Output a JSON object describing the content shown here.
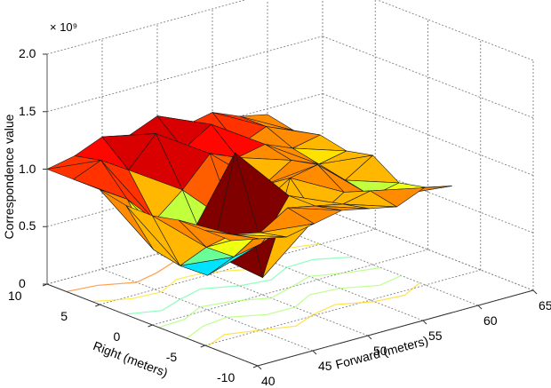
{
  "chart_data": {
    "type": "surface3d",
    "title": "",
    "xlabel": "Forward (meters)",
    "ylabel": "Right (meters)",
    "zlabel": "Correspondence value",
    "z_exponent_label": "× 10⁹",
    "xlim": [
      40,
      65
    ],
    "ylim": [
      -10,
      10
    ],
    "zlim": [
      0,
      2.0
    ],
    "x_ticks": [
      "40",
      "45",
      "50",
      "55",
      "60",
      "65"
    ],
    "y_ticks": [
      "10",
      "5",
      "0",
      "-5",
      "-10"
    ],
    "z_ticks": [
      "0",
      "0.5",
      "1.0",
      "1.5",
      "2.0"
    ],
    "grid": true,
    "colormap": "jet",
    "contour_on_floor": true,
    "surface": {
      "forward": [
        40,
        42.5,
        45,
        47.5,
        50,
        52.5,
        55,
        57.5,
        60
      ],
      "right": [
        10,
        7.5,
        5,
        2.5,
        0,
        -2.5,
        -5,
        -7.5
      ],
      "z_1e9": [
        [
          1.0,
          1.05,
          1.15,
          1.1,
          1.2,
          1.05,
          1.1,
          1.0,
          0.95
        ],
        [
          1.0,
          1.1,
          0.95,
          1.2,
          1.0,
          1.15,
          0.9,
          1.0,
          0.9
        ],
        [
          1.0,
          0.85,
          0.6,
          0.8,
          1.05,
          0.95,
          1.0,
          0.9,
          0.95
        ],
        [
          0.95,
          0.5,
          0.4,
          0.35,
          0.5,
          0.8,
          0.95,
          0.85,
          0.9
        ],
        [
          0.95,
          0.45,
          0.3,
          1.3,
          0.15,
          0.95,
          1.0,
          0.8,
          0.95
        ],
        [
          1.0,
          0.7,
          0.55,
          0.6,
          0.95,
          0.7,
          0.85,
          0.75,
          0.8
        ],
        [
          1.0,
          0.9,
          0.85,
          1.0,
          0.95,
          0.9,
          0.95,
          0.85,
          0.85
        ],
        [
          1.0,
          0.95,
          0.9,
          0.95,
          1.0,
          0.95,
          0.9,
          1.0,
          0.95
        ]
      ],
      "peak": {
        "forward": 47.5,
        "right": 0,
        "value_1e9": 1.3,
        "color": "#800000"
      },
      "minimum": {
        "forward": 50,
        "right": 0,
        "value_1e9": 0.15,
        "color": "#0000cd"
      }
    }
  },
  "colors": {
    "grid": "#808080",
    "axis": "#000000",
    "edge": "#1a1a1a"
  }
}
